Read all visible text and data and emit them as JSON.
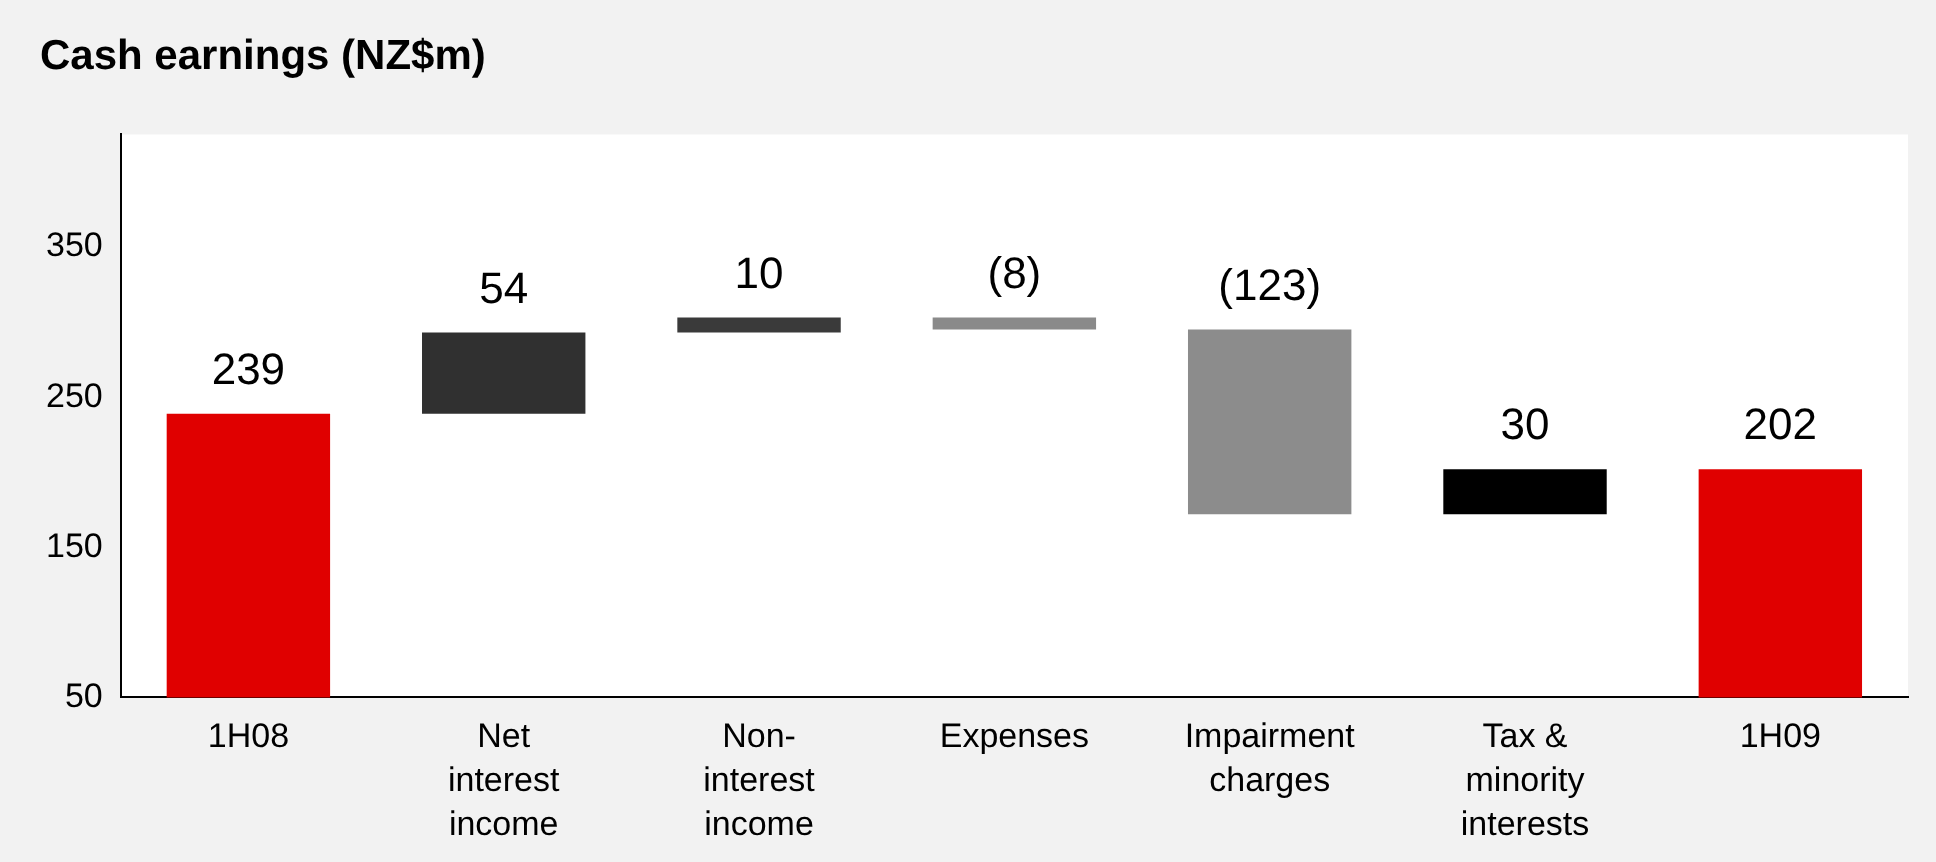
{
  "chart_data": {
    "type": "bar",
    "title": "Cash earnings (NZ$m)",
    "categories": [
      "1H08",
      "Net interest income",
      "Non-interest income",
      "Expenses",
      "Impairment charges",
      "Tax & minority interests",
      "1H09"
    ],
    "values": [
      239,
      54,
      10,
      -8,
      -123,
      30,
      202
    ],
    "base": [
      null,
      239,
      293,
      303,
      295,
      172,
      null
    ],
    "colors": [
      "#e00000",
      "#303030",
      "#3a3a3a",
      "#8a8a8a",
      "#8c8c8c",
      "#000000",
      "#e00000"
    ],
    "value_labels": [
      "239",
      "54",
      "10",
      "(8)",
      "(123)",
      "30",
      "202"
    ],
    "ylim": [
      50,
      425
    ],
    "yticks": [
      50,
      150,
      250,
      350
    ],
    "grid": false,
    "legend": false
  }
}
